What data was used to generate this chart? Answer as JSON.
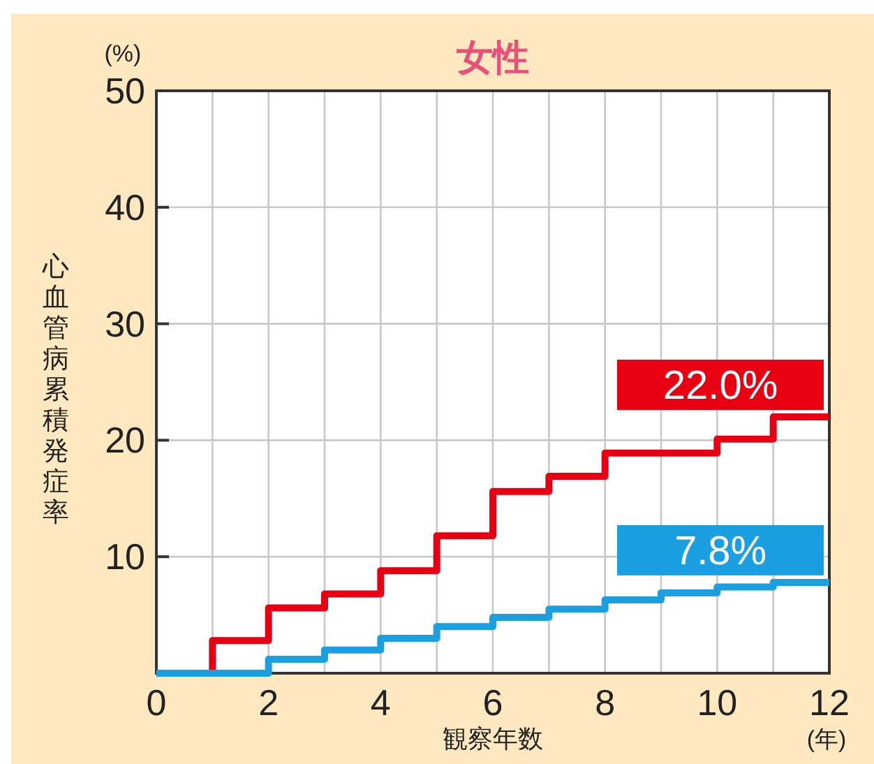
{
  "chart_data": {
    "type": "step",
    "title": "女性",
    "xlabel": "観察年数",
    "ylabel": "心血管病累積発症率",
    "annotations": [
      "(%)",
      "(年)"
    ],
    "x": [
      0,
      1,
      2,
      3,
      4,
      5,
      6,
      7,
      8,
      9,
      10,
      11,
      12
    ],
    "series": [
      {
        "color": "#e60012",
        "values": [
          0,
          2.8,
          5.6,
          6.8,
          8.8,
          11.8,
          15.6,
          16.9,
          18.9,
          18.9,
          20.1,
          22.0,
          22.0
        ],
        "value_labels": [
          null,
          null,
          null,
          null,
          null,
          null,
          null,
          null,
          null,
          null,
          null,
          "22.0%",
          null
        ]
      },
      {
        "color": "#1aa0e0",
        "values": [
          0,
          0,
          1.2,
          2.0,
          3.0,
          4.0,
          4.8,
          5.5,
          6.3,
          6.9,
          7.4,
          7.8,
          7.8
        ],
        "value_labels": [
          null,
          null,
          null,
          null,
          null,
          null,
          null,
          null,
          null,
          null,
          null,
          "7.8%",
          null
        ]
      }
    ],
    "xlim": [
      0,
      12
    ],
    "ylim": [
      0,
      50
    ],
    "xticks": [
      0,
      {
        "value": 1,
        "label": null
      },
      2,
      {
        "value": 3,
        "label": null
      },
      4,
      {
        "value": 5,
        "label": null
      },
      6,
      {
        "value": 7,
        "label": null
      },
      8,
      {
        "value": 9,
        "label": null
      },
      10,
      {
        "value": 11,
        "label": null
      },
      12
    ],
    "yticks": [
      10,
      20,
      30,
      40,
      50
    ],
    "grid": true
  }
}
